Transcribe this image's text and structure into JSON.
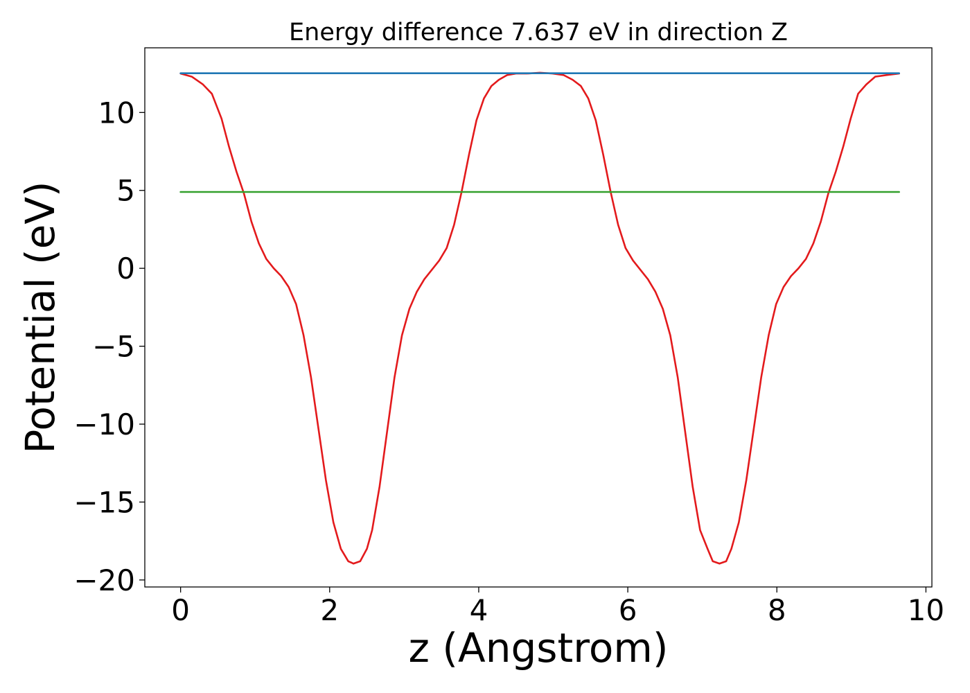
{
  "chart_data": {
    "type": "line",
    "title": "Energy difference 7.637 eV in direction Z",
    "xlabel": "z (Angstrom)",
    "ylabel": "Potential (eV)",
    "xlim": [
      -0.48,
      10.08
    ],
    "ylim": [
      -20.45,
      14.15
    ],
    "xticks": [
      0,
      2,
      4,
      6,
      8,
      10
    ],
    "yticks": [
      -20,
      -15,
      -10,
      -5,
      0,
      5,
      10
    ],
    "grid": false,
    "legend": "none",
    "series": [
      {
        "color": "#e31a1c",
        "style": "solid",
        "x": [
          0.0,
          0.15,
          0.3,
          0.42,
          0.55,
          0.65,
          0.75,
          0.85,
          0.95,
          1.05,
          1.15,
          1.25,
          1.35,
          1.45,
          1.55,
          1.65,
          1.75,
          1.85,
          1.95,
          2.05,
          2.15,
          2.25,
          2.32,
          2.41,
          2.5,
          2.57,
          2.67,
          2.77,
          2.87,
          2.97,
          3.07,
          3.17,
          3.27,
          3.37,
          3.47,
          3.57,
          3.67,
          3.77,
          3.87,
          3.97,
          4.07,
          4.17,
          4.27,
          4.38,
          4.5,
          4.65,
          4.82,
          4.99,
          5.14,
          5.26,
          5.37,
          5.47,
          5.57,
          5.67,
          5.77,
          5.87,
          5.97,
          6.07,
          6.17,
          6.27,
          6.37,
          6.47,
          6.57,
          6.67,
          6.77,
          6.87,
          6.97,
          7.07,
          7.14,
          7.23,
          7.32,
          7.39,
          7.49,
          7.59,
          7.69,
          7.79,
          7.89,
          7.99,
          8.09,
          8.19,
          8.29,
          8.39,
          8.49,
          8.59,
          8.69,
          8.79,
          8.89,
          8.99,
          9.09,
          9.2,
          9.32,
          9.47,
          9.64
        ],
        "y": [
          12.5,
          12.3,
          11.8,
          11.2,
          9.6,
          7.8,
          6.2,
          4.8,
          3.0,
          1.6,
          0.6,
          0.0,
          -0.5,
          -1.2,
          -2.3,
          -4.3,
          -7.0,
          -10.3,
          -13.6,
          -16.3,
          -18.0,
          -18.8,
          -18.95,
          -18.8,
          -18.0,
          -16.8,
          -14.0,
          -10.5,
          -7.0,
          -4.3,
          -2.6,
          -1.5,
          -0.7,
          -0.1,
          0.5,
          1.3,
          2.8,
          4.9,
          7.3,
          9.5,
          10.9,
          11.7,
          12.1,
          12.4,
          12.5,
          12.5,
          12.55,
          12.5,
          12.4,
          12.1,
          11.7,
          10.9,
          9.5,
          7.3,
          4.9,
          2.8,
          1.3,
          0.5,
          -0.1,
          -0.7,
          -1.5,
          -2.6,
          -4.3,
          -7.0,
          -10.5,
          -14.0,
          -16.8,
          -18.0,
          -18.8,
          -18.95,
          -18.8,
          -18.0,
          -16.3,
          -13.6,
          -10.3,
          -7.0,
          -4.3,
          -2.3,
          -1.2,
          -0.5,
          0.0,
          0.6,
          1.6,
          3.0,
          4.8,
          6.2,
          7.8,
          9.6,
          11.2,
          11.8,
          12.3,
          12.4,
          12.5
        ]
      },
      {
        "color": "#1f77b4",
        "style": "solid",
        "x": [
          0.0,
          9.64
        ],
        "y": [
          12.52,
          12.52
        ]
      },
      {
        "color": "#33a02c",
        "style": "solid",
        "x": [
          0.0,
          9.64
        ],
        "y": [
          4.9,
          4.9
        ]
      }
    ]
  }
}
